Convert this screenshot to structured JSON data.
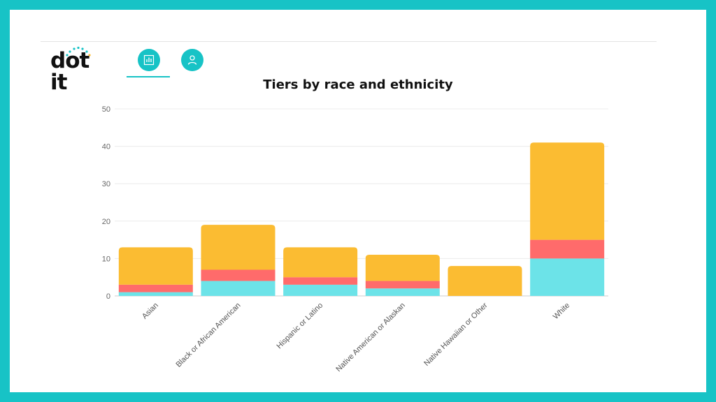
{
  "app": {
    "logo_text": "dot it"
  },
  "nav": {
    "items": [
      {
        "icon": "bar-chart-icon",
        "active": true
      },
      {
        "icon": "user-icon",
        "active": false
      }
    ]
  },
  "colors": {
    "background": "#17c3c6",
    "accent": "#17c3c6",
    "tier_bottom": "#6ce3e8",
    "tier_middle": "#ff6b6b",
    "tier_top": "#fbbc32"
  },
  "chart_data": {
    "type": "bar",
    "stacked": true,
    "title": "Tiers by race and ethnicity",
    "xlabel": "",
    "ylabel": "",
    "ylim": [
      0,
      50
    ],
    "yticks": [
      0,
      10,
      20,
      30,
      40,
      50
    ],
    "grid": true,
    "categories": [
      "Asian",
      "Black or African American",
      "Hispanic or Latino",
      "Native American or Alaskan",
      "Native Hawaiian or Other",
      "White"
    ],
    "series": [
      {
        "values": [
          1,
          4,
          3,
          2,
          0,
          10
        ],
        "color": "#6ce3e8"
      },
      {
        "values": [
          2,
          3,
          2,
          2,
          0,
          5
        ],
        "color": "#ff6b6b"
      },
      {
        "values": [
          10,
          12,
          8,
          7,
          8,
          26
        ],
        "color": "#fbbc32"
      }
    ]
  }
}
